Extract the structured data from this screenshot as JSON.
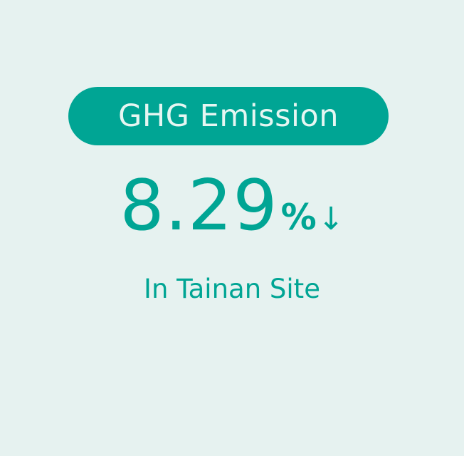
{
  "badge": {
    "label": "GHG Emission"
  },
  "stat": {
    "value": "8.29",
    "unit": "%",
    "direction_symbol": "↓"
  },
  "subtitle": "In Tainan Site",
  "colors": {
    "background": "#e6f2f0",
    "accent": "#00a594",
    "badge_text": "#e6f6f2"
  },
  "icons": {
    "direction": "down-arrow-icon"
  }
}
